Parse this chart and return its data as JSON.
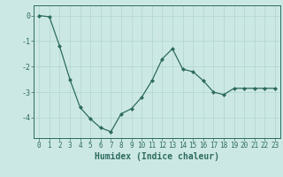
{
  "x": [
    0,
    1,
    2,
    3,
    4,
    5,
    6,
    7,
    8,
    9,
    10,
    11,
    12,
    13,
    14,
    15,
    16,
    17,
    18,
    19,
    20,
    21,
    22,
    23
  ],
  "y": [
    0.0,
    -0.05,
    -1.2,
    -2.5,
    -3.6,
    -4.05,
    -4.4,
    -4.55,
    -3.85,
    -3.65,
    -3.2,
    -2.55,
    -1.7,
    -1.3,
    -2.1,
    -2.2,
    -2.55,
    -3.0,
    -3.1,
    -2.85,
    -2.85,
    -2.85,
    -2.85,
    -2.85
  ],
  "line_color": "#2d6b5e",
  "marker": "D",
  "markersize": 2,
  "xlabel": "Humidex (Indice chaleur)",
  "xlim": [
    -0.5,
    23.5
  ],
  "ylim": [
    -4.8,
    0.4
  ],
  "yticks": [
    0,
    -1,
    -2,
    -3,
    -4
  ],
  "xtick_labels": [
    "0",
    "1",
    "2",
    "3",
    "4",
    "5",
    "6",
    "7",
    "8",
    "9",
    "10",
    "11",
    "12",
    "13",
    "14",
    "15",
    "16",
    "17",
    "18",
    "19",
    "20",
    "21",
    "22",
    "23"
  ],
  "bg_color": "#cce8e5",
  "grid_color": "#b0d4d0",
  "axis_color": "#2d6b5e",
  "tick_color": "#2d6b5e",
  "label_color": "#2d6b5e",
  "xlabel_fontsize": 7,
  "tick_fontsize": 5.5
}
